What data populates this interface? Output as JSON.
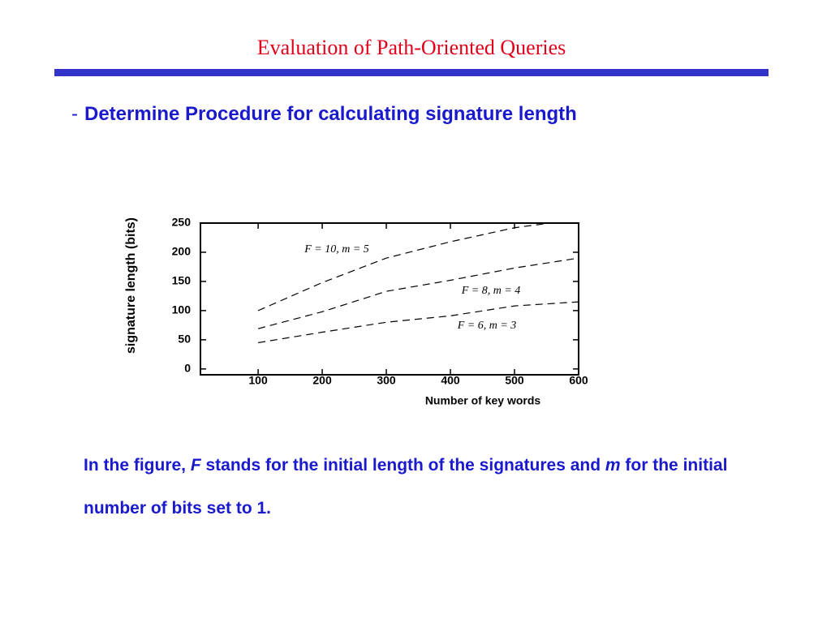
{
  "title": "Evaluation of Path-Oriented Queries",
  "bullet": {
    "marker": "-",
    "text": "Determine Procedure for calculating signature length"
  },
  "chart_data": {
    "type": "line",
    "x_label": "Number of key words",
    "y_label": "signature length (bits)",
    "xlim": [
      10,
      600
    ],
    "ylim": [
      -10,
      250
    ],
    "xticks": [
      100,
      200,
      300,
      400,
      500,
      600
    ],
    "yticks": [
      0,
      50,
      100,
      150,
      200,
      250
    ],
    "series": [
      {
        "name": "F = 10, m = 5",
        "color": "#000000",
        "x": [
          100,
          200,
          300,
          400,
          500,
          555
        ],
        "values": [
          100,
          148,
          190,
          218,
          242,
          250
        ]
      },
      {
        "name": "F = 8, m = 4",
        "color": "#000000",
        "x": [
          100,
          200,
          300,
          400,
          500,
          600
        ],
        "values": [
          69,
          98,
          133,
          152,
          173,
          190
        ]
      },
      {
        "name": "F = 6, m = 3",
        "color": "#000000",
        "x": [
          100,
          200,
          300,
          400,
          500,
          600
        ],
        "values": [
          45,
          63,
          80,
          91,
          108,
          115
        ]
      }
    ]
  },
  "caption": [
    "In the figure, ",
    "F",
    " stands for the initial length of the signatures and ",
    "m",
    " for the initial number of bits set to 1."
  ]
}
